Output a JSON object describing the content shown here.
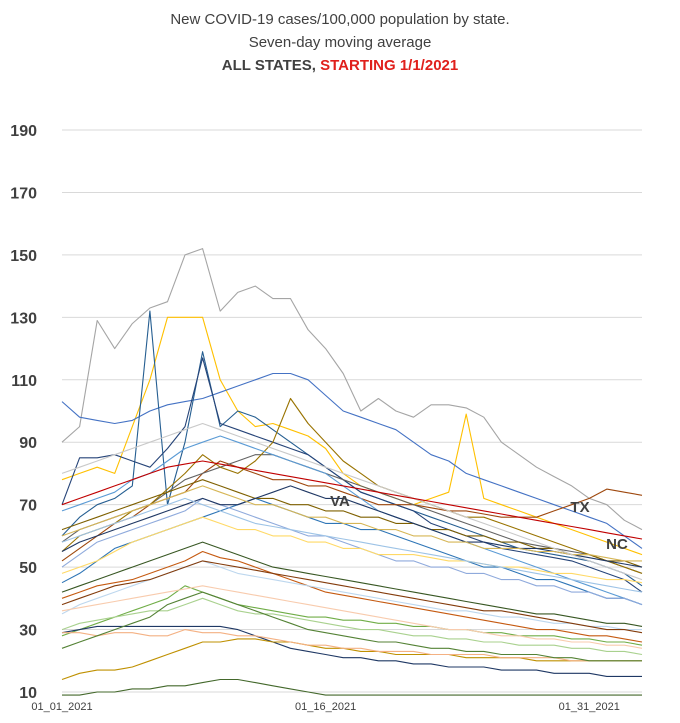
{
  "chart_data": {
    "type": "line",
    "title_line1": "New COVID-19 cases/100,000 population by state.",
    "title_line2": "Seven-day moving average",
    "title_line3_a": "ALL STATES,",
    "title_line3_b": "STARTING 1/1/2021",
    "xlabel": "",
    "ylabel": "",
    "ylim": [
      10,
      190
    ],
    "yticks": [
      "190",
      "170",
      "150",
      "130",
      "110",
      "90",
      "70",
      "50",
      "30",
      "10"
    ],
    "x_tick_labels": [
      "01_01_2021",
      "01_16_2021",
      "01_31_2021"
    ],
    "grid": true,
    "legend": "none",
    "annotations": [
      "VA",
      "TX",
      "NC"
    ],
    "n_points": 34,
    "series": [
      {
        "color": "#a5a5a5",
        "values": [
          90,
          95,
          129,
          120,
          128,
          133,
          135,
          150,
          152,
          132,
          138,
          140,
          136,
          136,
          126,
          120,
          112,
          100,
          104,
          100,
          98,
          102,
          102,
          101,
          98,
          90,
          86,
          82,
          79,
          76,
          72,
          70,
          65,
          62
        ]
      },
      {
        "color": "#ffc000",
        "values": [
          78,
          80,
          82,
          80,
          95,
          110,
          130,
          130,
          130,
          110,
          100,
          95,
          96,
          94,
          92,
          88,
          80,
          76,
          74,
          72,
          70,
          72,
          74,
          99,
          72,
          70,
          68,
          66,
          64,
          62,
          60,
          58,
          56,
          54
        ]
      },
      {
        "color": "#4472c4",
        "values": [
          103,
          98,
          97,
          96,
          97,
          100,
          102,
          103,
          104,
          106,
          108,
          110,
          112,
          112,
          110,
          105,
          100,
          98,
          96,
          94,
          90,
          86,
          84,
          80,
          78,
          76,
          74,
          72,
          70,
          68,
          66,
          64,
          60,
          56
        ]
      },
      {
        "color": "#255e91",
        "values": [
          60,
          66,
          70,
          72,
          76,
          132,
          70,
          90,
          119,
          95,
          100,
          98,
          94,
          90,
          86,
          82,
          78,
          74,
          72,
          70,
          68,
          66,
          64,
          62,
          60,
          58,
          56,
          55,
          54,
          53,
          52,
          50,
          48,
          44
        ]
      },
      {
        "color": "#264478",
        "values": [
          70,
          85,
          85,
          86,
          84,
          82,
          88,
          95,
          117,
          96,
          94,
          92,
          90,
          88,
          86,
          82,
          78,
          74,
          72,
          70,
          68,
          64,
          62,
          60,
          58,
          56,
          55,
          54,
          53,
          52,
          50,
          48,
          46,
          42
        ]
      },
      {
        "color": "#9e480e",
        "values": [
          52,
          56,
          60,
          64,
          66,
          70,
          72,
          74,
          80,
          84,
          82,
          80,
          78,
          78,
          76,
          76,
          74,
          72,
          70,
          70,
          70,
          69,
          68,
          68,
          67,
          66,
          66,
          66,
          68,
          70,
          72,
          75,
          74,
          73
        ]
      },
      {
        "color": "#636363",
        "values": [
          58,
          62,
          64,
          66,
          68,
          70,
          74,
          78,
          80,
          82,
          84,
          86,
          86,
          84,
          82,
          80,
          78,
          76,
          74,
          72,
          70,
          68,
          66,
          64,
          62,
          60,
          58,
          57,
          56,
          55,
          54,
          52,
          50,
          48
        ]
      },
      {
        "color": "#997300",
        "values": [
          55,
          60,
          62,
          64,
          68,
          70,
          75,
          80,
          86,
          82,
          80,
          84,
          90,
          104,
          96,
          90,
          84,
          80,
          76,
          74,
          72,
          70,
          68,
          66,
          66,
          64,
          62,
          60,
          58,
          56,
          54,
          52,
          50,
          48
        ]
      },
      {
        "color": "#5b9bd5",
        "values": [
          68,
          70,
          72,
          74,
          78,
          80,
          84,
          88,
          90,
          92,
          90,
          88,
          86,
          84,
          82,
          80,
          76,
          72,
          68,
          66,
          64,
          62,
          60,
          58,
          56,
          54,
          52,
          50,
          48,
          46,
          44,
          42,
          40,
          38
        ]
      },
      {
        "color": "#70ad47",
        "values": [
          28,
          30,
          32,
          34,
          36,
          38,
          40,
          44,
          42,
          40,
          38,
          37,
          36,
          35,
          34,
          34,
          33,
          33,
          32,
          32,
          31,
          31,
          30,
          30,
          29,
          29,
          28,
          28,
          28,
          27,
          27,
          26,
          26,
          25
        ]
      },
      {
        "color": "#43682b",
        "values": [
          9,
          9,
          10,
          10,
          11,
          11,
          12,
          12,
          13,
          14,
          14,
          13,
          12,
          11,
          10,
          9,
          9,
          9,
          9,
          9,
          9,
          9,
          9,
          9,
          9,
          9,
          9,
          9,
          9,
          9,
          9,
          9,
          9,
          9
        ]
      },
      {
        "color": "#1f3864",
        "values": [
          29,
          30,
          31,
          31,
          31,
          31,
          31,
          31,
          31,
          31,
          30,
          28,
          26,
          24,
          23,
          22,
          21,
          21,
          20,
          20,
          19,
          19,
          18,
          18,
          18,
          17,
          17,
          17,
          16,
          16,
          16,
          15,
          15,
          15
        ]
      },
      {
        "color": "#bf9000",
        "values": [
          14,
          16,
          17,
          17,
          18,
          20,
          22,
          24,
          26,
          26,
          27,
          27,
          26,
          26,
          25,
          24,
          24,
          23,
          23,
          22,
          22,
          22,
          22,
          21,
          21,
          21,
          21,
          20,
          20,
          20,
          20,
          20,
          20,
          20
        ]
      },
      {
        "color": "#f4b183",
        "values": [
          29,
          29,
          28,
          29,
          29,
          28,
          28,
          30,
          29,
          29,
          28,
          28,
          27,
          26,
          25,
          25,
          24,
          24,
          23,
          23,
          23,
          22,
          22,
          22,
          22,
          21,
          21,
          21,
          21,
          20,
          20,
          20,
          20,
          20
        ]
      },
      {
        "color": "#c55a11",
        "values": [
          40,
          42,
          44,
          45,
          46,
          48,
          50,
          52,
          55,
          53,
          52,
          50,
          48,
          46,
          44,
          42,
          41,
          40,
          39,
          38,
          37,
          36,
          35,
          34,
          33,
          32,
          31,
          30,
          30,
          29,
          28,
          28,
          27,
          26
        ]
      },
      {
        "color": "#a9d18e",
        "values": [
          30,
          32,
          33,
          34,
          35,
          36,
          36,
          38,
          40,
          38,
          36,
          35,
          35,
          34,
          33,
          32,
          31,
          30,
          30,
          29,
          28,
          28,
          27,
          27,
          26,
          26,
          25,
          25,
          25,
          24,
          24,
          23,
          23,
          22
        ]
      },
      {
        "color": "#548235",
        "values": [
          24,
          26,
          28,
          30,
          32,
          34,
          38,
          40,
          42,
          40,
          38,
          36,
          34,
          32,
          30,
          29,
          28,
          27,
          26,
          26,
          25,
          24,
          24,
          23,
          23,
          22,
          22,
          22,
          21,
          21,
          20,
          20,
          20,
          20
        ]
      },
      {
        "color": "#2e75b6",
        "values": [
          45,
          48,
          52,
          56,
          58,
          60,
          62,
          64,
          66,
          68,
          70,
          72,
          70,
          68,
          66,
          64,
          64,
          62,
          62,
          60,
          58,
          56,
          54,
          52,
          50,
          50,
          48,
          46,
          46,
          44,
          42,
          40,
          40,
          38
        ]
      },
      {
        "color": "#8faadc",
        "values": [
          50,
          54,
          58,
          60,
          62,
          64,
          66,
          68,
          72,
          70,
          68,
          66,
          64,
          62,
          60,
          60,
          58,
          56,
          54,
          52,
          52,
          50,
          50,
          48,
          48,
          46,
          46,
          44,
          44,
          42,
          42,
          40,
          40,
          38
        ]
      },
      {
        "color": "#ffd966",
        "values": [
          48,
          50,
          52,
          55,
          58,
          60,
          62,
          64,
          66,
          64,
          62,
          62,
          60,
          60,
          58,
          58,
          56,
          56,
          54,
          54,
          54,
          53,
          52,
          52,
          51,
          50,
          50,
          49,
          48,
          48,
          47,
          46,
          46,
          45
        ]
      },
      {
        "color": "#7f6000",
        "values": [
          62,
          64,
          66,
          68,
          70,
          72,
          74,
          76,
          78,
          76,
          74,
          72,
          72,
          70,
          70,
          68,
          68,
          66,
          66,
          64,
          64,
          62,
          62,
          60,
          60,
          58,
          58,
          56,
          56,
          54,
          54,
          52,
          52,
          50
        ]
      },
      {
        "color": "#203864",
        "values": [
          55,
          58,
          60,
          62,
          64,
          66,
          68,
          70,
          72,
          70,
          70,
          72,
          74,
          76,
          74,
          72,
          72,
          70,
          68,
          66,
          64,
          62,
          60,
          58,
          58,
          57,
          56,
          56,
          55,
          54,
          53,
          52,
          51,
          50
        ]
      },
      {
        "color": "#bdd7ee",
        "values": [
          35,
          38,
          40,
          42,
          44,
          46,
          48,
          50,
          52,
          50,
          48,
          47,
          46,
          45,
          44,
          43,
          42,
          41,
          40,
          39,
          38,
          37,
          36,
          36,
          35,
          34,
          34,
          33,
          32,
          32,
          31,
          31,
          30,
          30
        ]
      },
      {
        "color": "#d6b656",
        "values": [
          60,
          62,
          64,
          66,
          68,
          70,
          72,
          74,
          76,
          74,
          72,
          70,
          70,
          68,
          66,
          66,
          64,
          64,
          62,
          62,
          60,
          60,
          58,
          58,
          56,
          56,
          56,
          55,
          55,
          54,
          54,
          53,
          52,
          52
        ]
      },
      {
        "color": "#843c0c",
        "values": [
          38,
          40,
          42,
          44,
          45,
          46,
          48,
          50,
          52,
          51,
          50,
          49,
          48,
          47,
          46,
          45,
          44,
          43,
          42,
          41,
          40,
          39,
          38,
          37,
          36,
          36,
          35,
          34,
          33,
          32,
          31,
          30,
          30,
          29
        ]
      },
      {
        "color": "#c9c9c9",
        "values": [
          80,
          82,
          84,
          86,
          88,
          90,
          92,
          94,
          96,
          94,
          92,
          90,
          88,
          86,
          84,
          82,
          80,
          78,
          76,
          74,
          72,
          70,
          68,
          66,
          64,
          62,
          60,
          58,
          56,
          54,
          52,
          50,
          48,
          46
        ]
      },
      {
        "color": "#9dc3e6",
        "values": [
          58,
          60,
          62,
          64,
          66,
          68,
          70,
          72,
          70,
          68,
          66,
          64,
          63,
          62,
          61,
          60,
          59,
          58,
          57,
          56,
          55,
          54,
          53,
          52,
          51,
          50,
          49,
          48,
          47,
          46,
          45,
          44,
          43,
          42
        ]
      },
      {
        "color": "#c00000",
        "values": [
          70,
          72,
          74,
          76,
          78,
          80,
          82,
          83,
          84,
          83,
          82,
          81,
          80,
          79,
          78,
          77,
          76,
          75,
          74,
          73,
          72,
          71,
          70,
          69,
          68,
          67,
          66,
          65,
          64,
          63,
          62,
          61,
          60,
          59
        ]
      },
      {
        "color": "#385723",
        "values": [
          42,
          44,
          46,
          48,
          50,
          52,
          54,
          56,
          58,
          56,
          54,
          52,
          50,
          49,
          48,
          47,
          46,
          45,
          44,
          43,
          42,
          41,
          40,
          39,
          38,
          37,
          36,
          35,
          35,
          34,
          33,
          32,
          32,
          31
        ]
      },
      {
        "color": "#f8cbad",
        "values": [
          36,
          37,
          38,
          39,
          40,
          41,
          42,
          43,
          44,
          43,
          42,
          41,
          40,
          39,
          38,
          37,
          36,
          35,
          34,
          33,
          32,
          31,
          30,
          30,
          29,
          28,
          28,
          27,
          27,
          26,
          26,
          25,
          25,
          24
        ]
      }
    ]
  }
}
